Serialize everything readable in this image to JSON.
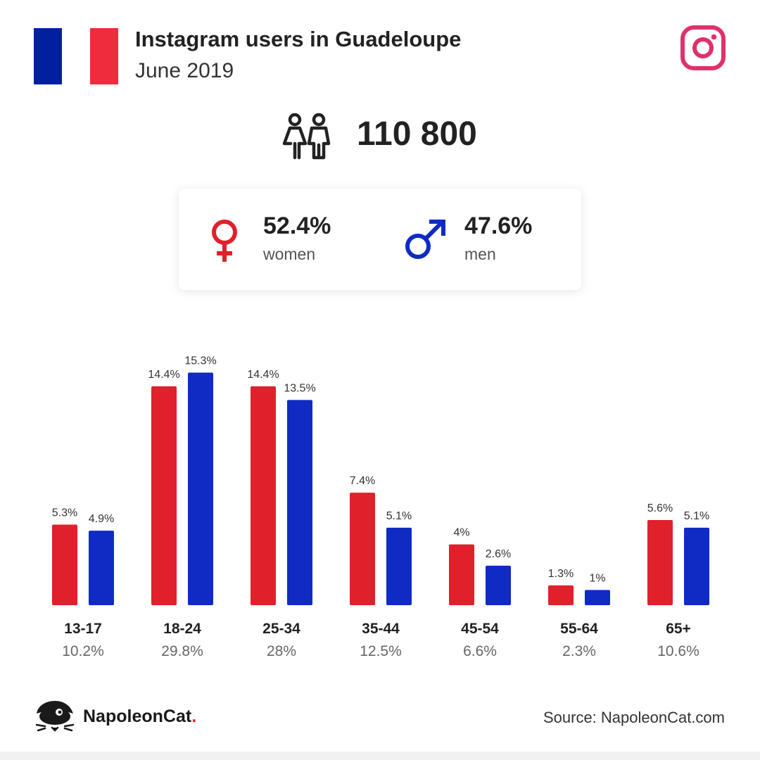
{
  "header": {
    "title": "Instagram users in Guadeloupe",
    "subtitle": "June 2019"
  },
  "flag_colors": {
    "blue": "#00209f",
    "white": "#ffffff",
    "red": "#ef2b3e"
  },
  "total": {
    "value": "110 800",
    "icon": "people-icon"
  },
  "gender": {
    "women": {
      "pct": "52.4%",
      "label": "women",
      "icon": "female-icon",
      "color": "#e0202a"
    },
    "men": {
      "pct": "47.6%",
      "label": "men",
      "icon": "male-icon",
      "color": "#0f2bc4"
    }
  },
  "chart_data": {
    "type": "bar",
    "categories": [
      "13-17",
      "18-24",
      "25-34",
      "35-44",
      "45-54",
      "55-64",
      "65+"
    ],
    "category_totals": [
      "10.2%",
      "29.8%",
      "28%",
      "12.5%",
      "6.6%",
      "2.3%",
      "10.6%"
    ],
    "series": [
      {
        "key": "women",
        "color": "#e0202a",
        "values": [
          5.3,
          14.4,
          14.4,
          7.4,
          4,
          1.3,
          5.6
        ],
        "labels": [
          "5.3%",
          "14.4%",
          "14.4%",
          "7.4%",
          "4%",
          "1.3%",
          "5.6%"
        ]
      },
      {
        "key": "men",
        "color": "#0f2bc4",
        "values": [
          4.9,
          15.3,
          13.5,
          5.1,
          2.6,
          1,
          5.1
        ],
        "labels": [
          "4.9%",
          "15.3%",
          "13.5%",
          "5.1%",
          "2.6%",
          "1%",
          "5.1%"
        ]
      }
    ],
    "grid": false,
    "legend": "none"
  },
  "footer": {
    "brand_name": "NapoleonCat",
    "brand_dot": ".",
    "source": "Source: NapoleonCat.com"
  }
}
